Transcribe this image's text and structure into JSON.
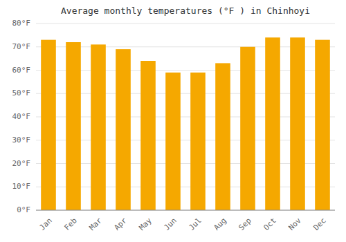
{
  "chart_data": {
    "type": "bar",
    "title": "Average monthly temperatures (°F ) in Chinhoyi",
    "categories": [
      "Jan",
      "Feb",
      "Mar",
      "Apr",
      "May",
      "Jun",
      "Jul",
      "Aug",
      "Sep",
      "Oct",
      "Nov",
      "Dec"
    ],
    "values": [
      73,
      72,
      71,
      69,
      64,
      59,
      59,
      63,
      70,
      74,
      74,
      73
    ],
    "color": "#F5A800",
    "ylim": [
      0,
      80
    ],
    "yticks": [
      {
        "value": 0,
        "label": "0°F"
      },
      {
        "value": 10,
        "label": "10°F"
      },
      {
        "value": 20,
        "label": "20°F"
      },
      {
        "value": 30,
        "label": "30°F"
      },
      {
        "value": 40,
        "label": "40°F"
      },
      {
        "value": 50,
        "label": "50°F"
      },
      {
        "value": 60,
        "label": "60°F"
      },
      {
        "value": 70,
        "label": "70°F"
      },
      {
        "value": 80,
        "label": "80°F"
      }
    ],
    "grid": true
  }
}
